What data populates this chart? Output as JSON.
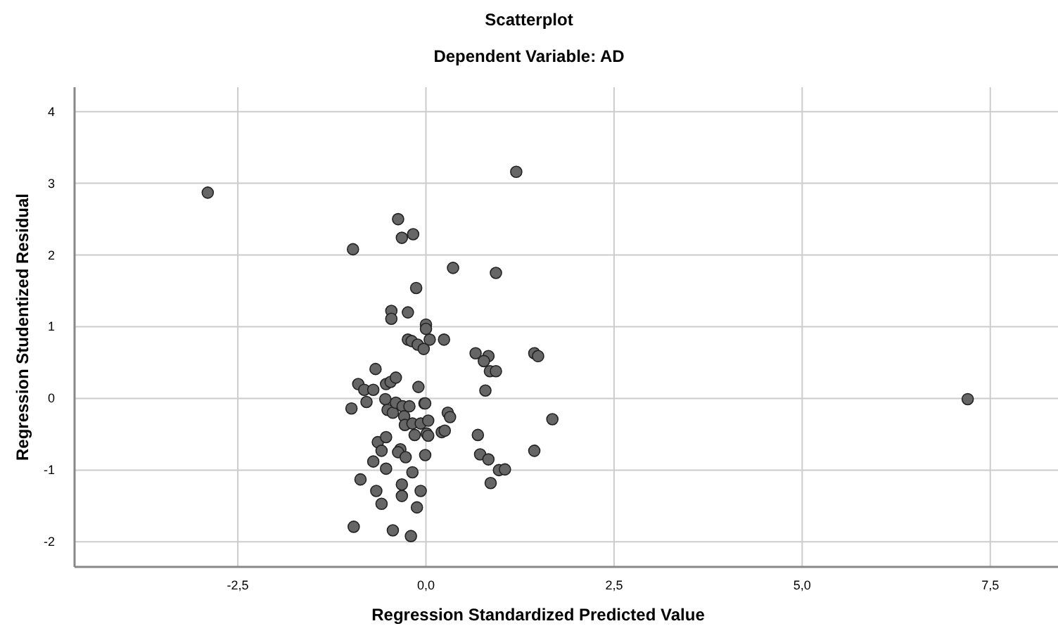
{
  "chart_data": {
    "type": "scatter",
    "title": "Scatterplot",
    "subtitle": "Dependent Variable: AD",
    "xlabel": "Regression Standardized Predicted Value",
    "ylabel": "Regression Studentized Residual",
    "xlim": [
      -4.67,
      8.4
    ],
    "ylim": [
      -2.35,
      4.34
    ],
    "xticks": [
      {
        "value": -2.5,
        "label": "-2,5"
      },
      {
        "value": 0,
        "label": "0,0"
      },
      {
        "value": 2.5,
        "label": "2,5"
      },
      {
        "value": 5,
        "label": "5,0"
      },
      {
        "value": 7.5,
        "label": "7,5"
      }
    ],
    "yticks": [
      -2,
      -1,
      0,
      1,
      2,
      3,
      4
    ],
    "grid": true,
    "marker": "circle",
    "series": [
      {
        "color": "#666666",
        "x": [
          -2.9,
          1.2,
          -0.37,
          -0.32,
          -0.17,
          -0.97,
          0.36,
          0.93,
          -0.13,
          -0.46,
          -0.46,
          -0.24,
          0.0,
          0.0,
          -0.24,
          -0.19,
          -0.11,
          -0.03,
          0.05,
          0.24,
          0.66,
          0.83,
          0.77,
          0.85,
          0.93,
          1.44,
          1.49,
          0.79,
          -0.1,
          -0.02,
          1.68,
          0.29,
          0.32,
          -0.67,
          -0.9,
          -0.82,
          -0.7,
          -0.53,
          -0.47,
          -0.4,
          -0.99,
          -0.79,
          -0.54,
          -0.51,
          -0.44,
          -0.4,
          -0.31,
          -0.22,
          -0.29,
          -0.28,
          -0.18,
          -0.07,
          -0.01,
          0.03,
          -0.15,
          0.01,
          0.03,
          0.21,
          0.25,
          0.69,
          -0.64,
          -0.53,
          -0.59,
          -0.34,
          -0.37,
          -0.27,
          -0.01,
          -0.7,
          -0.53,
          -0.18,
          0.72,
          0.83,
          0.97,
          1.05,
          1.44,
          0.86,
          -0.87,
          -0.66,
          -0.32,
          -0.32,
          -0.07,
          -0.59,
          -0.12,
          -0.96,
          -0.44,
          -0.2,
          7.2
        ],
        "values": [
          2.87,
          3.16,
          2.5,
          2.24,
          2.29,
          2.08,
          1.82,
          1.75,
          1.54,
          1.22,
          1.11,
          1.2,
          1.03,
          0.97,
          0.82,
          0.8,
          0.75,
          0.69,
          0.82,
          0.82,
          0.63,
          0.59,
          0.52,
          0.38,
          0.38,
          0.63,
          0.59,
          0.11,
          0.16,
          -0.07,
          -0.29,
          -0.2,
          -0.26,
          0.41,
          0.2,
          0.12,
          0.12,
          0.2,
          0.23,
          0.29,
          -0.14,
          -0.05,
          -0.01,
          -0.16,
          -0.2,
          -0.06,
          -0.11,
          -0.11,
          -0.25,
          -0.37,
          -0.35,
          -0.35,
          -0.07,
          -0.31,
          -0.51,
          -0.49,
          -0.52,
          -0.47,
          -0.45,
          -0.51,
          -0.61,
          -0.54,
          -0.73,
          -0.71,
          -0.75,
          -0.82,
          -0.79,
          -0.88,
          -0.98,
          -1.03,
          -0.78,
          -0.85,
          -1.0,
          -0.99,
          -0.73,
          -1.18,
          -1.13,
          -1.29,
          -1.2,
          -1.36,
          -1.29,
          -1.47,
          -1.52,
          -1.79,
          -1.84,
          -1.92,
          -0.01
        ]
      }
    ]
  }
}
